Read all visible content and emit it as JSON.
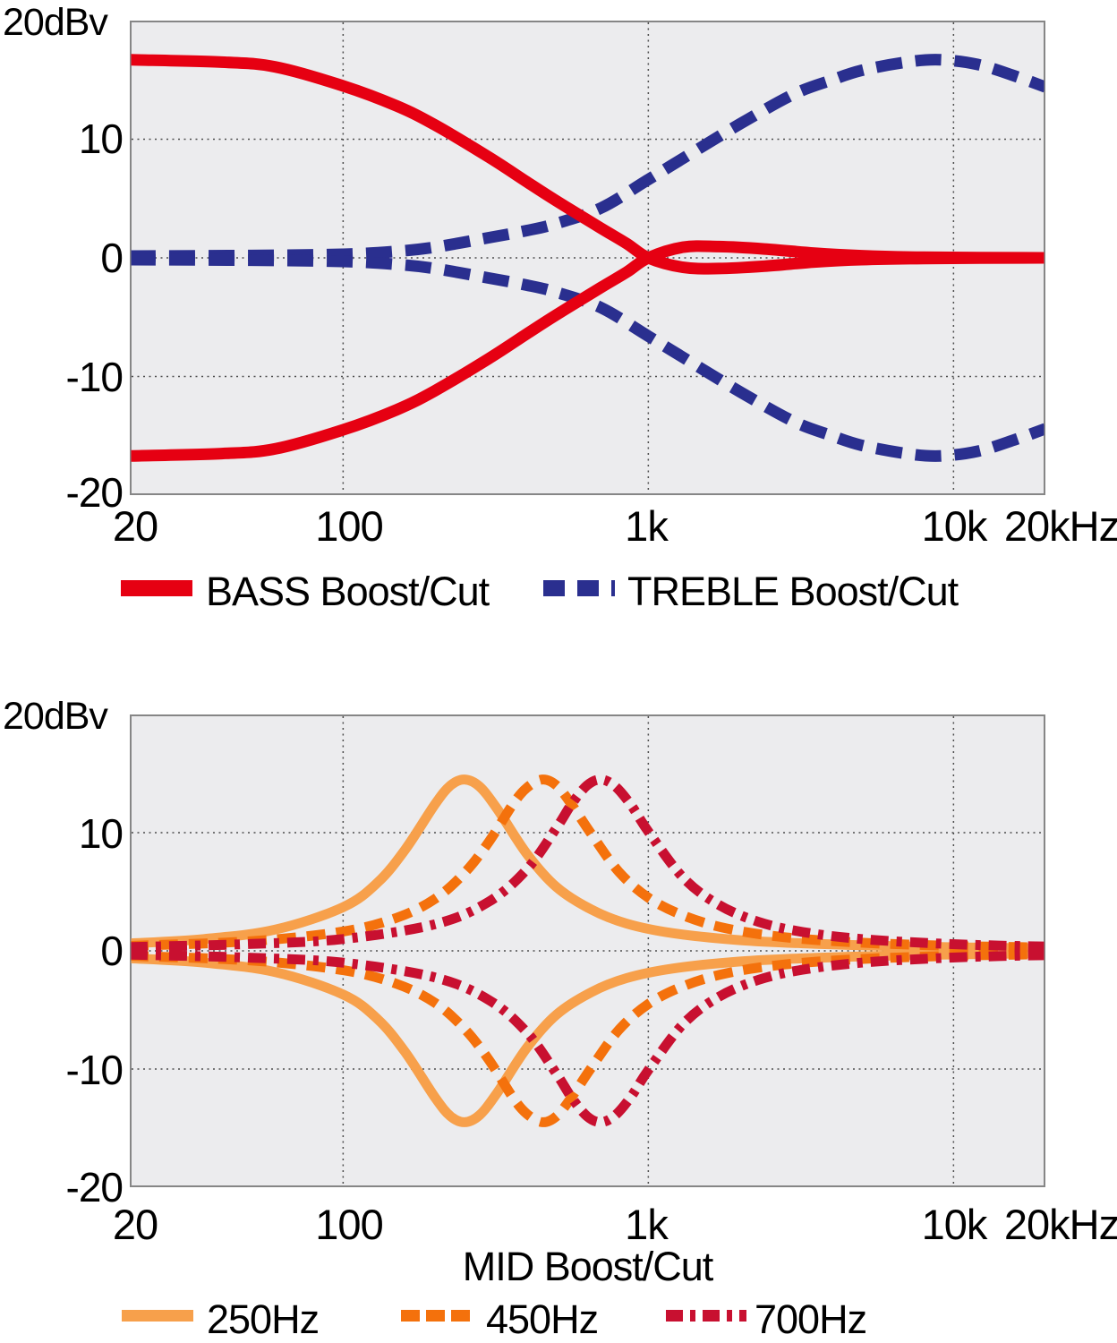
{
  "styles": {
    "plot_bg": "#ececee",
    "border_color": "#868686",
    "grid_color": "#4d4d4d",
    "bass_red": "#e60012",
    "treble_navy": "#2a2f8f",
    "mid_250_orange": "#f7a04b",
    "mid_450_orange": "#f4710c",
    "mid_700_crimson": "#c81030"
  },
  "chart_data": [
    {
      "type": "line",
      "title": "",
      "y_unit_label": "20dBv",
      "xlabel": "",
      "x_scale": "log",
      "x_range_hz": [
        20,
        20000
      ],
      "ylim": [
        -20,
        20
      ],
      "grid": true,
      "grid_x_hz": [
        100,
        1000,
        10000
      ],
      "grid_y_db": [
        10,
        0,
        -10
      ],
      "y_ticks": [
        {
          "value": 10,
          "label": "10"
        },
        {
          "value": 0,
          "label": "0"
        },
        {
          "value": -10,
          "label": "-10"
        },
        {
          "value": -20,
          "label": "-20"
        }
      ],
      "x_ticks": [
        {
          "value": 20,
          "label": "20"
        },
        {
          "value": 100,
          "label": "100"
        },
        {
          "value": 1000,
          "label": "1k"
        },
        {
          "value": 10000,
          "label": "10k"
        },
        {
          "value": 20000,
          "label": "20kHz"
        }
      ],
      "legend_position": "bottom",
      "legend": [
        {
          "label": "BASS Boost/Cut",
          "color": "#e60012",
          "line_style": "solid"
        },
        {
          "label": "TREBLE Boost/Cut",
          "color": "#2a2f8f",
          "line_style": "dashed"
        }
      ],
      "series": [
        {
          "name": "treble-boost",
          "color": "#2a2f8f",
          "line_style": "dashed",
          "points": [
            [
              20,
              0.15
            ],
            [
              50,
              0.2
            ],
            [
              100,
              0.3
            ],
            [
              150,
              0.55
            ],
            [
              200,
              0.9
            ],
            [
              300,
              1.7
            ],
            [
              400,
              2.3
            ],
            [
              500,
              2.9
            ],
            [
              700,
              4.2
            ],
            [
              1000,
              6.6
            ],
            [
              1400,
              8.9
            ],
            [
              2000,
              11.3
            ],
            [
              3000,
              13.8
            ],
            [
              4000,
              15.0
            ],
            [
              5000,
              15.8
            ],
            [
              7000,
              16.5
            ],
            [
              9000,
              16.7
            ],
            [
              12000,
              16.3
            ],
            [
              16000,
              15.3
            ],
            [
              20000,
              14.4
            ]
          ]
        },
        {
          "name": "treble-cut",
          "color": "#2a2f8f",
          "line_style": "dashed",
          "points": [
            [
              20,
              -0.15
            ],
            [
              50,
              -0.2
            ],
            [
              100,
              -0.3
            ],
            [
              150,
              -0.55
            ],
            [
              200,
              -0.9
            ],
            [
              300,
              -1.7
            ],
            [
              400,
              -2.3
            ],
            [
              500,
              -2.9
            ],
            [
              700,
              -4.2
            ],
            [
              1000,
              -6.6
            ],
            [
              1400,
              -8.9
            ],
            [
              2000,
              -11.3
            ],
            [
              3000,
              -13.8
            ],
            [
              4000,
              -15.0
            ],
            [
              5000,
              -15.8
            ],
            [
              7000,
              -16.5
            ],
            [
              9000,
              -16.7
            ],
            [
              12000,
              -16.3
            ],
            [
              16000,
              -15.3
            ],
            [
              20000,
              -14.4
            ]
          ]
        },
        {
          "name": "bass-boost",
          "color": "#e60012",
          "line_style": "solid",
          "points": [
            [
              20,
              16.7
            ],
            [
              40,
              16.5
            ],
            [
              60,
              16.1
            ],
            [
              100,
              14.5
            ],
            [
              150,
              12.8
            ],
            [
              200,
              11.2
            ],
            [
              300,
              8.5
            ],
            [
              400,
              6.4
            ],
            [
              500,
              4.8
            ],
            [
              700,
              2.5
            ],
            [
              850,
              1.2
            ],
            [
              1000,
              0
            ],
            [
              1300,
              -0.8
            ],
            [
              1700,
              -0.9
            ],
            [
              2400,
              -0.7
            ],
            [
              3500,
              -0.35
            ],
            [
              5000,
              -0.15
            ],
            [
              8000,
              -0.05
            ],
            [
              20000,
              0
            ]
          ]
        },
        {
          "name": "bass-cut",
          "color": "#e60012",
          "line_style": "solid",
          "points": [
            [
              20,
              -16.7
            ],
            [
              40,
              -16.5
            ],
            [
              60,
              -16.1
            ],
            [
              100,
              -14.5
            ],
            [
              150,
              -12.8
            ],
            [
              200,
              -11.2
            ],
            [
              300,
              -8.5
            ],
            [
              400,
              -6.4
            ],
            [
              500,
              -4.8
            ],
            [
              700,
              -2.5
            ],
            [
              850,
              -1.2
            ],
            [
              1000,
              0
            ],
            [
              1300,
              0.9
            ],
            [
              1700,
              0.95
            ],
            [
              2400,
              0.75
            ],
            [
              3500,
              0.4
            ],
            [
              5000,
              0.18
            ],
            [
              8000,
              0.05
            ],
            [
              20000,
              0
            ]
          ]
        }
      ]
    },
    {
      "type": "line",
      "title": "",
      "y_unit_label": "20dBv",
      "xlabel": "MID Boost/Cut",
      "x_scale": "log",
      "x_range_hz": [
        20,
        20000
      ],
      "ylim": [
        -20,
        20
      ],
      "grid": true,
      "grid_x_hz": [
        100,
        1000,
        10000
      ],
      "grid_y_db": [
        10,
        0,
        -10
      ],
      "y_ticks": [
        {
          "value": 10,
          "label": "10"
        },
        {
          "value": 0,
          "label": "0"
        },
        {
          "value": -10,
          "label": "-10"
        },
        {
          "value": -20,
          "label": "-20"
        }
      ],
      "x_ticks": [
        {
          "value": 20,
          "label": "20"
        },
        {
          "value": 100,
          "label": "100"
        },
        {
          "value": 1000,
          "label": "1k"
        },
        {
          "value": 10000,
          "label": "10k"
        },
        {
          "value": 20000,
          "label": "20kHz"
        }
      ],
      "legend_position": "bottom",
      "legend": [
        {
          "label": "250Hz",
          "color": "#f7a04b",
          "line_style": "solid"
        },
        {
          "label": "450Hz",
          "color": "#f4710c",
          "line_style": "dashed"
        },
        {
          "label": "700Hz",
          "color": "#c81030",
          "line_style": "dash-dot"
        }
      ],
      "series": [
        {
          "name": "250hz-boost",
          "color": "#f7a04b",
          "line_style": "solid",
          "points": [
            [
              20,
              0.63
            ],
            [
              35,
              1.0
            ],
            [
              60,
              1.8
            ],
            [
              100,
              3.7
            ],
            [
              130,
              5.8
            ],
            [
              160,
              8.6
            ],
            [
              200,
              12.4
            ],
            [
              225,
              14.0
            ],
            [
              250,
              14.5
            ],
            [
              280,
              13.9
            ],
            [
              320,
              12.0
            ],
            [
              400,
              8.2
            ],
            [
              500,
              5.4
            ],
            [
              650,
              3.5
            ],
            [
              850,
              2.3
            ],
            [
              1200,
              1.5
            ],
            [
              2000,
              0.9
            ],
            [
              3500,
              0.6
            ],
            [
              7000,
              0.37
            ],
            [
              12000,
              0.27
            ],
            [
              20000,
              0.21
            ]
          ]
        },
        {
          "name": "250hz-cut",
          "color": "#f7a04b",
          "line_style": "solid",
          "points": [
            [
              20,
              -0.63
            ],
            [
              35,
              -1.0
            ],
            [
              60,
              -1.8
            ],
            [
              100,
              -3.7
            ],
            [
              130,
              -5.8
            ],
            [
              160,
              -8.6
            ],
            [
              200,
              -12.4
            ],
            [
              225,
              -14.0
            ],
            [
              250,
              -14.5
            ],
            [
              280,
              -13.9
            ],
            [
              320,
              -12.0
            ],
            [
              400,
              -8.2
            ],
            [
              500,
              -5.4
            ],
            [
              650,
              -3.5
            ],
            [
              850,
              -2.3
            ],
            [
              1200,
              -1.5
            ],
            [
              2000,
              -0.9
            ],
            [
              3500,
              -0.6
            ],
            [
              7000,
              -0.37
            ],
            [
              12000,
              -0.27
            ],
            [
              20000,
              -0.21
            ]
          ]
        },
        {
          "name": "450hz-boost",
          "color": "#f4710c",
          "line_style": "dashed",
          "points": [
            [
              20,
              0.42
            ],
            [
              50,
              0.82
            ],
            [
              100,
              1.64
            ],
            [
              150,
              2.8
            ],
            [
              200,
              4.4
            ],
            [
              250,
              6.6
            ],
            [
              300,
              9.2
            ],
            [
              360,
              12.4
            ],
            [
              400,
              13.8
            ],
            [
              450,
              14.5
            ],
            [
              500,
              14.0
            ],
            [
              560,
              12.4
            ],
            [
              650,
              9.9
            ],
            [
              800,
              6.7
            ],
            [
              1000,
              4.5
            ],
            [
              1300,
              3.0
            ],
            [
              1800,
              1.9
            ],
            [
              2800,
              1.15
            ],
            [
              5000,
              0.69
            ],
            [
              10000,
              0.42
            ],
            [
              20000,
              0.28
            ]
          ]
        },
        {
          "name": "450hz-cut",
          "color": "#f4710c",
          "line_style": "dashed",
          "points": [
            [
              20,
              -0.42
            ],
            [
              50,
              -0.82
            ],
            [
              100,
              -1.64
            ],
            [
              150,
              -2.8
            ],
            [
              200,
              -4.4
            ],
            [
              250,
              -6.6
            ],
            [
              300,
              -9.2
            ],
            [
              360,
              -12.4
            ],
            [
              400,
              -13.8
            ],
            [
              450,
              -14.5
            ],
            [
              500,
              -14.0
            ],
            [
              560,
              -12.4
            ],
            [
              650,
              -9.9
            ],
            [
              800,
              -6.7
            ],
            [
              1000,
              -4.5
            ],
            [
              1300,
              -3.0
            ],
            [
              1800,
              -1.9
            ],
            [
              2800,
              -1.15
            ],
            [
              5000,
              -0.69
            ],
            [
              10000,
              -0.42
            ],
            [
              20000,
              -0.28
            ]
          ]
        },
        {
          "name": "700hz-boost",
          "color": "#c81030",
          "line_style": "dash-dot",
          "points": [
            [
              20,
              0.32
            ],
            [
              50,
              0.58
            ],
            [
              100,
              1.0
            ],
            [
              200,
              2.25
            ],
            [
              300,
              4.15
            ],
            [
              400,
              6.9
            ],
            [
              500,
              10.4
            ],
            [
              560,
              12.4
            ],
            [
              630,
              14.0
            ],
            [
              700,
              14.5
            ],
            [
              780,
              13.9
            ],
            [
              880,
              12.3
            ],
            [
              1000,
              10.1
            ],
            [
              1300,
              6.2
            ],
            [
              1700,
              3.9
            ],
            [
              2300,
              2.45
            ],
            [
              3200,
              1.6
            ],
            [
              5000,
              1.0
            ],
            [
              9000,
              0.61
            ],
            [
              14000,
              0.45
            ],
            [
              20000,
              0.36
            ]
          ]
        },
        {
          "name": "700hz-cut",
          "color": "#c81030",
          "line_style": "dash-dot",
          "points": [
            [
              20,
              -0.32
            ],
            [
              50,
              -0.58
            ],
            [
              100,
              -1.0
            ],
            [
              200,
              -2.25
            ],
            [
              300,
              -4.15
            ],
            [
              400,
              -6.9
            ],
            [
              500,
              -10.4
            ],
            [
              560,
              -12.4
            ],
            [
              630,
              -14.0
            ],
            [
              700,
              -14.5
            ],
            [
              780,
              -13.9
            ],
            [
              880,
              -12.3
            ],
            [
              1000,
              -10.1
            ],
            [
              1300,
              -6.2
            ],
            [
              1700,
              -3.9
            ],
            [
              2300,
              -2.45
            ],
            [
              3200,
              -1.6
            ],
            [
              5000,
              -1.0
            ],
            [
              9000,
              -0.61
            ],
            [
              14000,
              -0.45
            ],
            [
              20000,
              -0.36
            ]
          ]
        }
      ]
    }
  ]
}
